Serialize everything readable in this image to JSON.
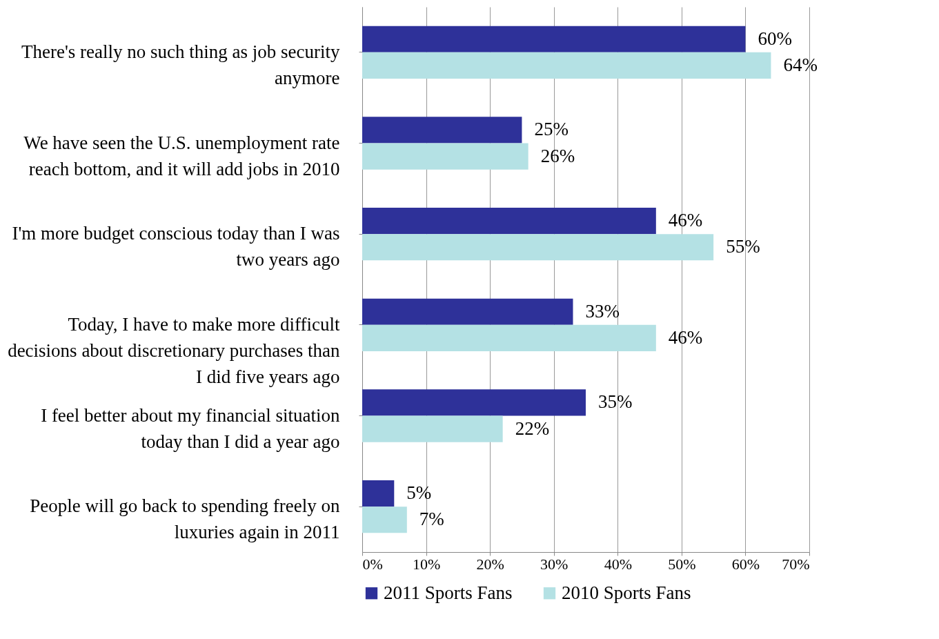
{
  "chart_data": {
    "type": "bar",
    "orientation": "horizontal",
    "categories": [
      "There's really no such thing as job security anymore",
      "We have seen the U.S. unemployment rate reach bottom, and it will add jobs in 2010",
      "I'm more budget conscious today than I was two years ago",
      "Today, I have to make more difficult decisions about discretionary purchases than I did five years ago",
      "I feel better about my financial situation today than I did a year ago",
      "People will go back to spending freely on luxuries again in 2011"
    ],
    "series": [
      {
        "name": "2011 Sports Fans",
        "color": "#2e3199",
        "values": [
          60,
          25,
          46,
          33,
          35,
          5
        ],
        "value_labels": [
          "60%",
          "25%",
          "46%",
          "33%",
          "35%",
          "5%"
        ]
      },
      {
        "name": "2010 Sports Fans",
        "color": "#b4e1e4",
        "values": [
          64,
          26,
          55,
          46,
          22,
          7
        ],
        "value_labels": [
          "64%",
          "26%",
          "55%",
          "46%",
          "22%",
          "7%"
        ]
      }
    ],
    "xlim": [
      0,
      70
    ],
    "xticks": [
      {
        "value": 0,
        "label": "0%"
      },
      {
        "value": 10,
        "label": "10%"
      },
      {
        "value": 20,
        "label": "20%"
      },
      {
        "value": 30,
        "label": "30%"
      },
      {
        "value": 40,
        "label": "40%"
      },
      {
        "value": 50,
        "label": "50%"
      },
      {
        "value": 60,
        "label": "60%"
      },
      {
        "value": 70,
        "label": "70%"
      }
    ],
    "grid": "x",
    "legend": "bottom"
  }
}
